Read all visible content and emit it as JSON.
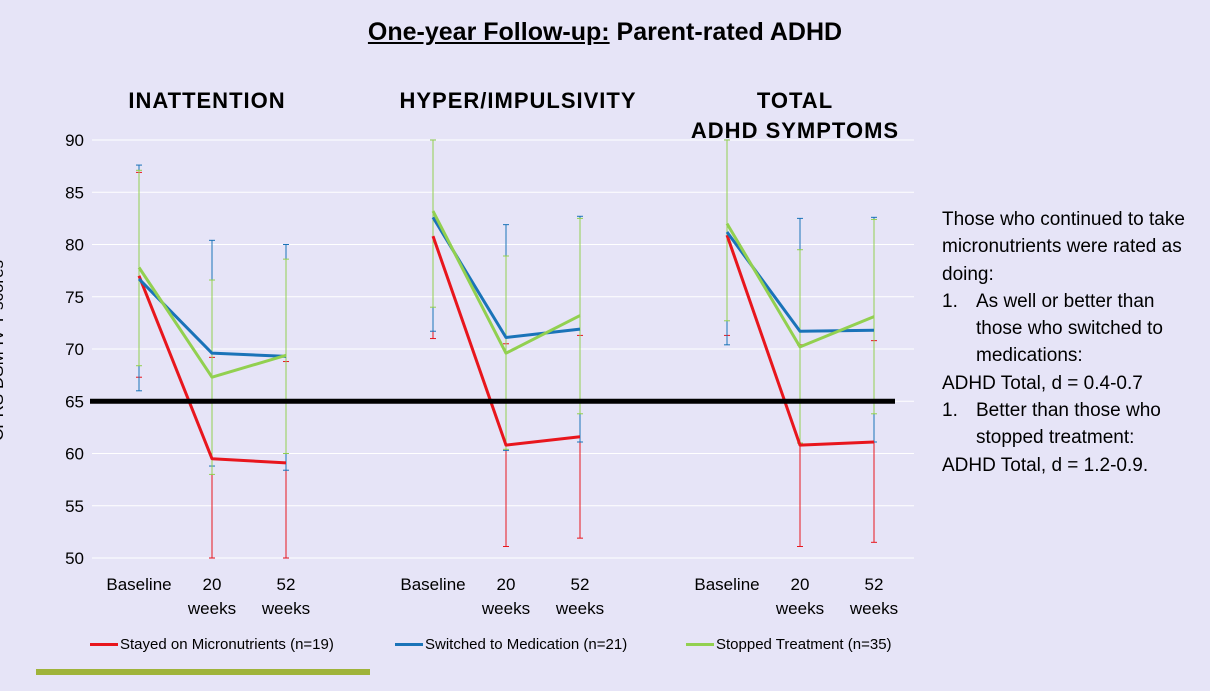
{
  "title_main": "One-year Follow-up:",
  "title_rest": " Parent-rated ADHD",
  "colors": {
    "red": "#e8161d",
    "blue": "#1a73b8",
    "green": "#92d050",
    "threshold": "#000000",
    "accent": "#9fb33a"
  },
  "notes": {
    "line1": "Those who continued to take micronutrients were rated as doing:",
    "item1_num": "1.",
    "item1_text": "As well or better than those who switched to medications:",
    "line2": "ADHD Total, d = 0.4-0.7",
    "item2_num": "1.",
    "item2_text": "Better than those who stopped treatment:",
    "line3": "ADHD Total, d = 1.2-0.9."
  },
  "chart_data": {
    "type": "line",
    "ylabel": "CPRS DSM-IV T-scores",
    "ylim": [
      50,
      90
    ],
    "yticks": [
      50,
      55,
      60,
      65,
      70,
      75,
      80,
      85,
      90
    ],
    "threshold": 65,
    "grid": true,
    "legend_position": "bottom",
    "panels": [
      {
        "title_lines": [
          "INATTENTION"
        ],
        "categories": [
          [
            "Baseline"
          ],
          [
            "20",
            "weeks"
          ],
          [
            "52",
            "weeks"
          ]
        ],
        "series": [
          {
            "name": "Stayed on Micronutrients (n=19)",
            "color": "#e8161d",
            "values": [
              77.0,
              59.5,
              59.1
            ],
            "err_low": [
              67.3,
              50.0,
              50.0
            ],
            "err_high": [
              86.9,
              69.2,
              68.8
            ]
          },
          {
            "name": "Switched to Medication (n=21)",
            "color": "#1a73b8",
            "values": [
              76.7,
              69.6,
              69.3
            ],
            "err_low": [
              66.0,
              58.8,
              58.4
            ],
            "err_high": [
              87.6,
              80.4,
              80.0
            ]
          },
          {
            "name": "Stopped Treatment (n=35)",
            "color": "#92d050",
            "values": [
              77.8,
              67.3,
              69.4
            ],
            "err_low": [
              68.4,
              58.0,
              60.0
            ],
            "err_high": [
              87.1,
              76.6,
              78.6
            ]
          }
        ]
      },
      {
        "title_lines": [
          "HYPER/IMPULSIVITY"
        ],
        "categories": [
          [
            "Baseline"
          ],
          [
            "20",
            "weeks"
          ],
          [
            "52",
            "weeks"
          ]
        ],
        "series": [
          {
            "name": "Stayed on Micronutrients (n=19)",
            "color": "#e8161d",
            "values": [
              80.8,
              60.8,
              61.6
            ],
            "err_low": [
              71.0,
              51.1,
              51.9
            ],
            "err_high": [
              90.0,
              70.5,
              71.3
            ]
          },
          {
            "name": "Switched to Medication (n=21)",
            "color": "#1a73b8",
            "values": [
              82.6,
              71.1,
              71.9
            ],
            "err_low": [
              71.7,
              60.3,
              61.1
            ],
            "err_high": [
              90.0,
              81.9,
              82.7
            ]
          },
          {
            "name": "Stopped Treatment (n=35)",
            "color": "#92d050",
            "values": [
              83.2,
              69.6,
              73.2
            ],
            "err_low": [
              74.0,
              60.4,
              63.8
            ],
            "err_high": [
              90.0,
              78.9,
              82.5
            ]
          }
        ]
      },
      {
        "title_lines": [
          "TOTAL",
          "ADHD SYMPTOMS"
        ],
        "categories": [
          [
            "Baseline"
          ],
          [
            "20",
            "weeks"
          ],
          [
            "52",
            "weeks"
          ]
        ],
        "series": [
          {
            "name": "Stayed on Micronutrients (n=19)",
            "color": "#e8161d",
            "values": [
              80.9,
              60.8,
              61.1
            ],
            "err_low": [
              71.3,
              51.1,
              51.5
            ],
            "err_high": [
              90.0,
              70.4,
              70.8
            ]
          },
          {
            "name": "Switched to Medication (n=21)",
            "color": "#1a73b8",
            "values": [
              81.2,
              71.7,
              71.8
            ],
            "err_low": [
              70.4,
              61.0,
              61.1
            ],
            "err_high": [
              90.0,
              82.5,
              82.6
            ]
          },
          {
            "name": "Stopped Treatment (n=35)",
            "color": "#92d050",
            "values": [
              82.0,
              70.2,
              73.1
            ],
            "err_low": [
              72.7,
              61.0,
              63.8
            ],
            "err_high": [
              90.0,
              79.5,
              82.4
            ]
          }
        ]
      }
    ]
  }
}
